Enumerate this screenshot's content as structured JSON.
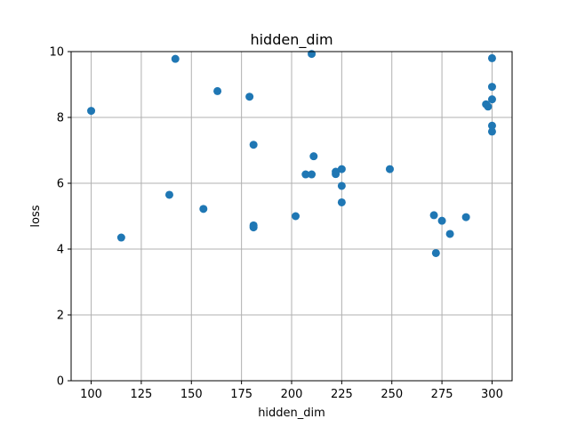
{
  "chart_data": {
    "type": "scatter",
    "title": "hidden_dim",
    "xlabel": "hidden_dim",
    "ylabel": "loss",
    "xlim": [
      90,
      310
    ],
    "ylim": [
      0,
      10
    ],
    "xticks": [
      100,
      125,
      150,
      175,
      200,
      225,
      250,
      275,
      300
    ],
    "yticks": [
      0,
      2,
      4,
      6,
      8,
      10
    ],
    "grid": true,
    "marker_color": "#1f77b4",
    "points": [
      {
        "x": 100,
        "y": 8.2
      },
      {
        "x": 115,
        "y": 4.35
      },
      {
        "x": 139,
        "y": 5.65
      },
      {
        "x": 142,
        "y": 9.78
      },
      {
        "x": 156,
        "y": 5.22
      },
      {
        "x": 163,
        "y": 8.8
      },
      {
        "x": 179,
        "y": 8.63
      },
      {
        "x": 181,
        "y": 7.17
      },
      {
        "x": 181,
        "y": 4.72
      },
      {
        "x": 181,
        "y": 4.66
      },
      {
        "x": 202,
        "y": 5.0
      },
      {
        "x": 207,
        "y": 6.27
      },
      {
        "x": 210,
        "y": 6.27
      },
      {
        "x": 210,
        "y": 9.93
      },
      {
        "x": 211,
        "y": 6.82
      },
      {
        "x": 222,
        "y": 6.35
      },
      {
        "x": 222,
        "y": 6.28
      },
      {
        "x": 225,
        "y": 6.43
      },
      {
        "x": 225,
        "y": 5.92
      },
      {
        "x": 225,
        "y": 5.42
      },
      {
        "x": 249,
        "y": 6.43
      },
      {
        "x": 271,
        "y": 5.03
      },
      {
        "x": 272,
        "y": 3.88
      },
      {
        "x": 275,
        "y": 4.86
      },
      {
        "x": 279,
        "y": 4.46
      },
      {
        "x": 287,
        "y": 4.97
      },
      {
        "x": 297,
        "y": 8.4
      },
      {
        "x": 298,
        "y": 8.33
      },
      {
        "x": 300,
        "y": 9.8
      },
      {
        "x": 300,
        "y": 8.93
      },
      {
        "x": 300,
        "y": 8.55
      },
      {
        "x": 300,
        "y": 7.75
      },
      {
        "x": 300,
        "y": 7.57
      }
    ]
  }
}
